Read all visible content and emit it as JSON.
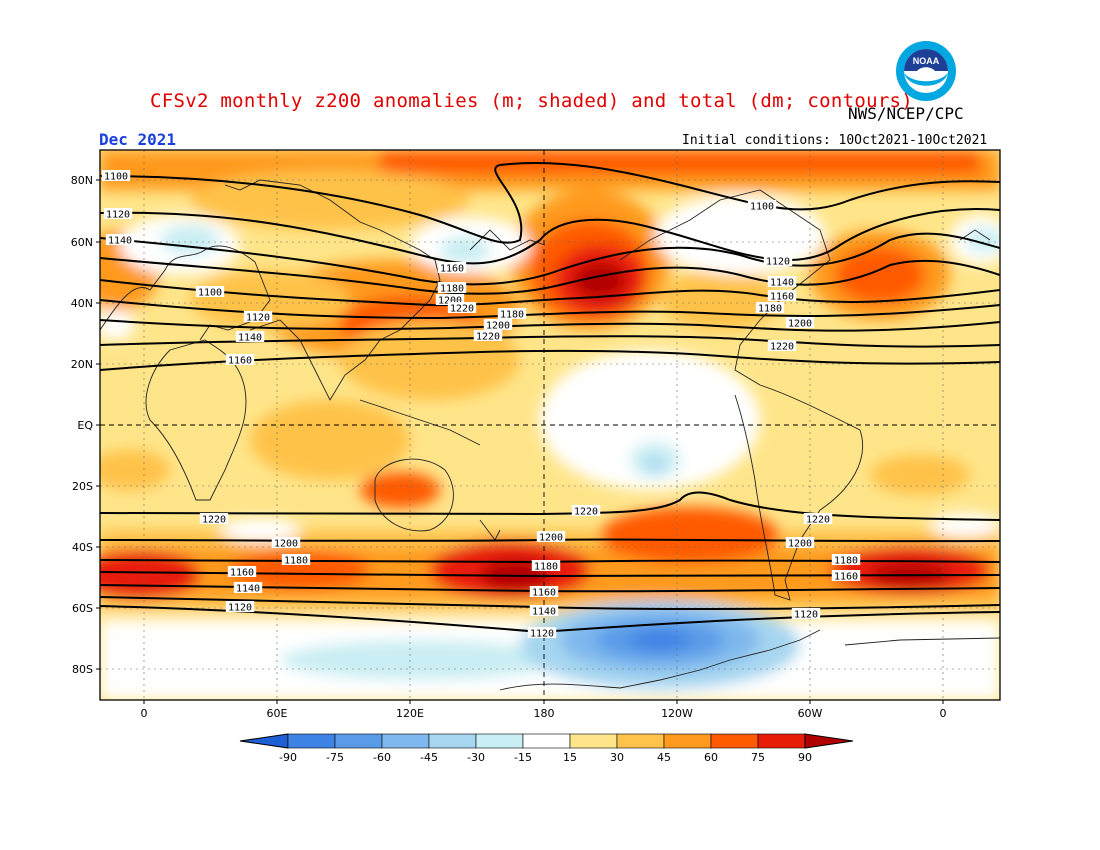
{
  "title": "CFSv2 monthly z200 anomalies (m; shaded) and total (dm; contours)",
  "agency": "NWS/NCEP/CPC",
  "logo_text": "NOAA",
  "month_label": "Dec 2021",
  "initial_conditions": "Initial conditions: 10Oct2021-10Oct2021",
  "map": {
    "lat_ticks": [
      "80N",
      "60N",
      "40N",
      "20N",
      "EQ",
      "20S",
      "40S",
      "60S",
      "80S"
    ],
    "lon_ticks": [
      "0",
      "60E",
      "120E",
      "180",
      "120W",
      "60W",
      "0"
    ]
  },
  "contour_labels": [
    "1100",
    "1120",
    "1140",
    "1160",
    "1180",
    "1200",
    "1220",
    "1100",
    "1120",
    "1140",
    "1160",
    "1180",
    "1200",
    "1220",
    "1100",
    "1120",
    "1140",
    "1160",
    "1180",
    "1200",
    "1220",
    "1220",
    "1200",
    "1180",
    "1160",
    "1140",
    "1120",
    "1220",
    "1200",
    "1180",
    "1160",
    "1140",
    "1120",
    "1220",
    "1200",
    "1180",
    "1160",
    "1120"
  ],
  "colorbar": {
    "labels": [
      "-90",
      "-75",
      "-60",
      "-45",
      "-30",
      "-15",
      "15",
      "30",
      "45",
      "60",
      "75",
      "90"
    ],
    "colors": [
      "#1f5fd6",
      "#3f82e6",
      "#5a9be8",
      "#7fb8ee",
      "#a6d6f0",
      "#c9eef3",
      "#ffffff",
      "#ffe58a",
      "#ffc24a",
      "#ff9a1e",
      "#ff5a00",
      "#e81d08",
      "#b10000"
    ]
  }
}
